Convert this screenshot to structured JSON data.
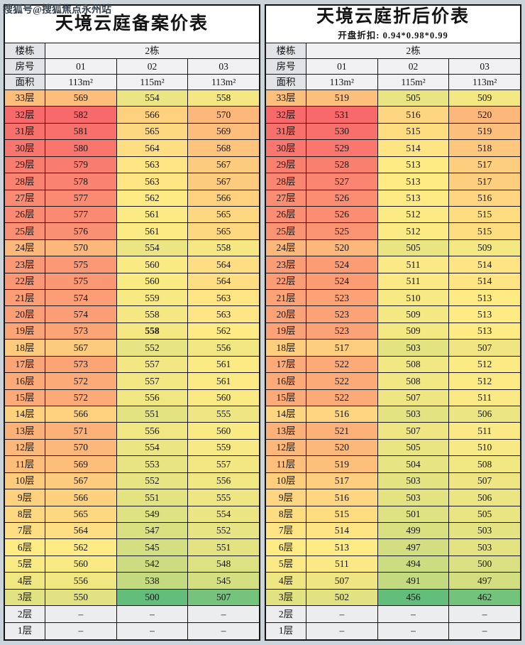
{
  "watermark": "搜狐号@搜狐焦点永州站",
  "colors": {
    "scale_green": "#63BE7B",
    "scale_yellow": "#FFEB84",
    "scale_red": "#F8696B",
    "empty_cell": "#ECEDEF",
    "page_bg": "#CCD4DB",
    "header_label_bg": "#E2E3E7",
    "header_value_bg": "#F1F1F4",
    "title_bg": "#FFFFFF",
    "grid_line": "#141414",
    "watermark_color": "#36434F"
  },
  "chart_data": [
    {
      "type": "heatmap",
      "title": "天境云庭备案价表",
      "row_header": "楼栋",
      "building": "2栋",
      "room_label": "房号",
      "rooms": [
        "01",
        "02",
        "03"
      ],
      "area_label": "面积",
      "areas": [
        "113m²",
        "115m²",
        "113m²"
      ],
      "floor_unit": "层",
      "empty_marker": "–",
      "bold_cells": [
        {
          "floor": 19,
          "col": 1
        }
      ],
      "floors": [
        33,
        32,
        31,
        30,
        29,
        28,
        27,
        26,
        25,
        24,
        23,
        22,
        21,
        20,
        19,
        18,
        17,
        16,
        15,
        14,
        13,
        12,
        11,
        10,
        9,
        8,
        7,
        6,
        5,
        4,
        3,
        2,
        1
      ],
      "values": [
        [
          569,
          554,
          558
        ],
        [
          582,
          566,
          570
        ],
        [
          581,
          565,
          569
        ],
        [
          580,
          564,
          568
        ],
        [
          579,
          563,
          567
        ],
        [
          578,
          563,
          567
        ],
        [
          577,
          562,
          566
        ],
        [
          577,
          561,
          565
        ],
        [
          576,
          561,
          565
        ],
        [
          570,
          554,
          558
        ],
        [
          575,
          560,
          564
        ],
        [
          575,
          560,
          564
        ],
        [
          574,
          559,
          563
        ],
        [
          574,
          558,
          563
        ],
        [
          573,
          558,
          562
        ],
        [
          567,
          552,
          556
        ],
        [
          573,
          557,
          561
        ],
        [
          572,
          557,
          561
        ],
        [
          572,
          556,
          560
        ],
        [
          566,
          551,
          555
        ],
        [
          571,
          556,
          560
        ],
        [
          570,
          554,
          559
        ],
        [
          569,
          553,
          557
        ],
        [
          567,
          552,
          556
        ],
        [
          566,
          551,
          555
        ],
        [
          565,
          549,
          554
        ],
        [
          564,
          547,
          552
        ],
        [
          562,
          545,
          551
        ],
        [
          560,
          542,
          548
        ],
        [
          556,
          538,
          545
        ],
        [
          550,
          500,
          507
        ],
        [
          null,
          null,
          null
        ],
        [
          null,
          null,
          null
        ]
      ]
    },
    {
      "type": "heatmap",
      "title": "天境云庭折后价表",
      "subtitle": "开盘折扣: 0.94*0.98*0.99",
      "row_header": "楼栋",
      "building": "2栋",
      "room_label": "房号",
      "rooms": [
        "01",
        "02",
        "03"
      ],
      "area_label": "面积",
      "areas": [
        "113m²",
        "115m²",
        "113m²"
      ],
      "floor_unit": "层",
      "empty_marker": "–",
      "bold_cells": [],
      "floors": [
        33,
        32,
        31,
        30,
        29,
        28,
        27,
        26,
        25,
        24,
        23,
        22,
        21,
        20,
        19,
        18,
        17,
        16,
        15,
        14,
        13,
        12,
        11,
        10,
        9,
        8,
        7,
        6,
        5,
        4,
        3,
        2,
        1
      ],
      "values": [
        [
          519,
          505,
          509
        ],
        [
          531,
          516,
          520
        ],
        [
          530,
          515,
          519
        ],
        [
          529,
          514,
          518
        ],
        [
          528,
          513,
          517
        ],
        [
          527,
          513,
          517
        ],
        [
          526,
          513,
          516
        ],
        [
          526,
          512,
          515
        ],
        [
          525,
          512,
          515
        ],
        [
          520,
          505,
          509
        ],
        [
          524,
          511,
          514
        ],
        [
          524,
          511,
          514
        ],
        [
          523,
          510,
          513
        ],
        [
          523,
          509,
          513
        ],
        [
          523,
          509,
          513
        ],
        [
          517,
          503,
          507
        ],
        [
          522,
          508,
          512
        ],
        [
          522,
          508,
          512
        ],
        [
          522,
          507,
          511
        ],
        [
          516,
          503,
          506
        ],
        [
          521,
          507,
          511
        ],
        [
          520,
          505,
          510
        ],
        [
          519,
          504,
          508
        ],
        [
          517,
          503,
          507
        ],
        [
          516,
          503,
          506
        ],
        [
          515,
          501,
          505
        ],
        [
          514,
          499,
          503
        ],
        [
          513,
          497,
          503
        ],
        [
          511,
          494,
          500
        ],
        [
          507,
          491,
          497
        ],
        [
          502,
          456,
          462
        ],
        [
          null,
          null,
          null
        ],
        [
          null,
          null,
          null
        ]
      ]
    }
  ]
}
